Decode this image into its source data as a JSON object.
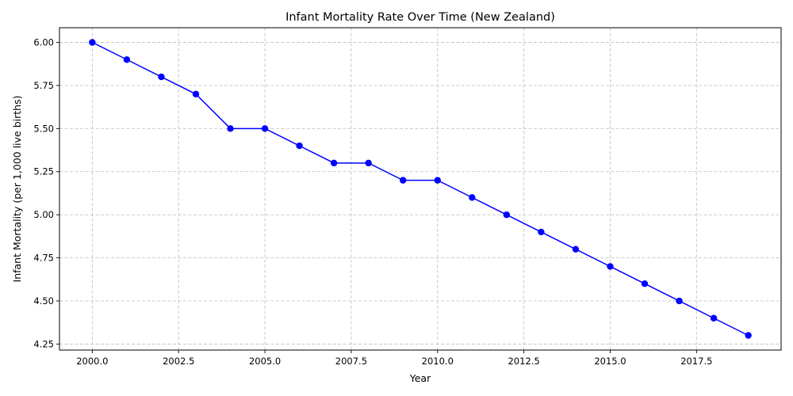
{
  "chart_data": {
    "type": "line",
    "title": "Infant Mortality Rate Over Time (New Zealand)",
    "xlabel": "Year",
    "ylabel": "Infant Mortality (per 1,000 live births)",
    "xlim": [
      1999.05,
      2019.95
    ],
    "ylim": [
      4.215,
      6.085
    ],
    "x_ticks": [
      2000.0,
      2002.5,
      2005.0,
      2007.5,
      2010.0,
      2012.5,
      2015.0,
      2017.5
    ],
    "x_tick_labels": [
      "2000.0",
      "2002.5",
      "2005.0",
      "2007.5",
      "2010.0",
      "2012.5",
      "2015.0",
      "2017.5"
    ],
    "y_ticks": [
      4.25,
      4.5,
      4.75,
      5.0,
      5.25,
      5.5,
      5.75,
      6.0
    ],
    "y_tick_labels": [
      "4.25",
      "4.50",
      "4.75",
      "5.00",
      "5.25",
      "5.50",
      "5.75",
      "6.00"
    ],
    "grid": true,
    "series": [
      {
        "color": "#0000ff",
        "marker": "circle",
        "x": [
          2000,
          2001,
          2002,
          2003,
          2004,
          2005,
          2006,
          2007,
          2008,
          2009,
          2010,
          2011,
          2012,
          2013,
          2014,
          2015,
          2016,
          2017,
          2018,
          2019
        ],
        "y": [
          6.0,
          5.9,
          5.8,
          5.7,
          5.5,
          5.5,
          5.4,
          5.3,
          5.3,
          5.2,
          5.2,
          5.1,
          5.0,
          4.9,
          4.8,
          4.7,
          4.6,
          4.5,
          4.4,
          4.3
        ]
      }
    ]
  }
}
